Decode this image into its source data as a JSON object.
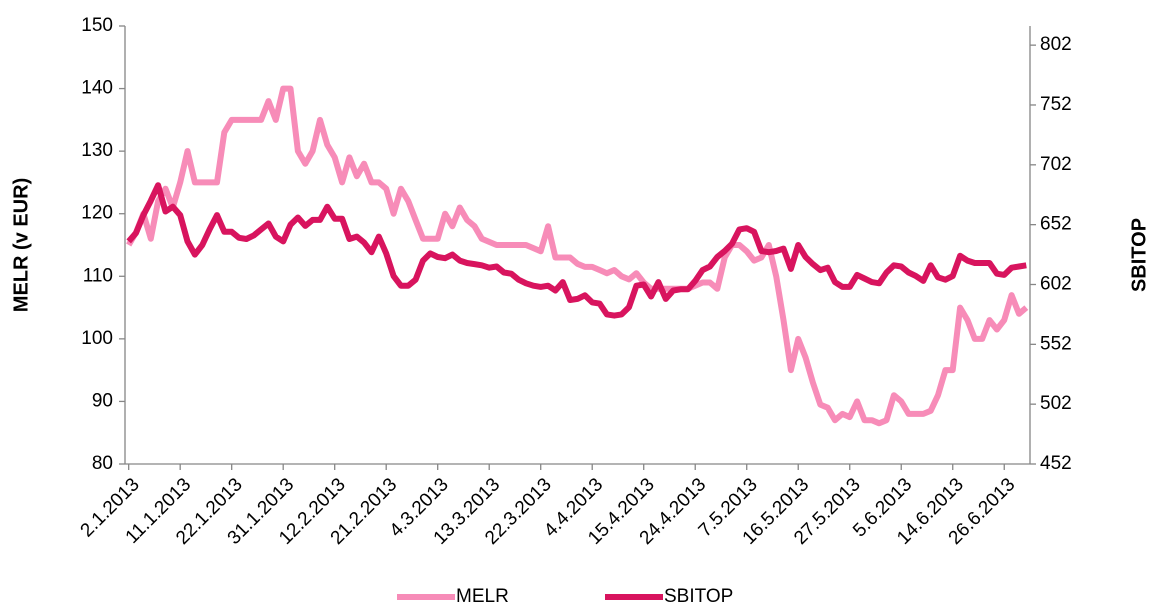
{
  "chart_data": {
    "type": "line",
    "y_label": "MELR (v EUR)",
    "y2_label": "SBITOP",
    "categories": [
      "2.1.2013",
      null,
      null,
      null,
      null,
      null,
      null,
      "11.1.2013",
      null,
      null,
      null,
      null,
      null,
      null,
      "22.1.2013",
      null,
      null,
      null,
      null,
      null,
      null,
      "31.1.2013",
      null,
      null,
      null,
      null,
      null,
      null,
      "12.2.2013",
      null,
      null,
      null,
      null,
      null,
      null,
      "21.2.2013",
      null,
      null,
      null,
      null,
      null,
      null,
      "4.3.2013",
      null,
      null,
      null,
      null,
      null,
      null,
      "13.3.2013",
      null,
      null,
      null,
      null,
      null,
      null,
      "22.3.2013",
      null,
      null,
      null,
      null,
      null,
      null,
      "4.4.2013",
      null,
      null,
      null,
      null,
      null,
      null,
      "15.4.2013",
      null,
      null,
      null,
      null,
      null,
      null,
      "24.4.2013",
      null,
      null,
      null,
      null,
      null,
      null,
      "7.5.2013",
      null,
      null,
      null,
      null,
      null,
      null,
      "16.5.2013",
      null,
      null,
      null,
      null,
      null,
      null,
      "27.5.2013",
      null,
      null,
      null,
      null,
      null,
      null,
      "5.6.2013",
      null,
      null,
      null,
      null,
      null,
      null,
      "14.6.2013",
      null,
      null,
      null,
      null,
      null,
      null,
      "26.6.2013",
      null,
      null,
      null
    ],
    "ylim": [
      80,
      150
    ],
    "yticks": [
      80,
      90,
      100,
      110,
      120,
      130,
      140,
      150
    ],
    "y2lim": [
      452,
      818
    ],
    "y2ticks": [
      452,
      502,
      552,
      602,
      652,
      702,
      752,
      802
    ],
    "legend": "bottom",
    "series": [
      {
        "name": "MELR",
        "color": "#f78cb8",
        "values": [
          115,
          117,
          120,
          116,
          122,
          124,
          121,
          125,
          130,
          125,
          125,
          125,
          125,
          133,
          135,
          135,
          135,
          135,
          135,
          138,
          135,
          140,
          140,
          130,
          128,
          130,
          135,
          131,
          129,
          125,
          129,
          126,
          128,
          125,
          125,
          124,
          120,
          124,
          122,
          119,
          116,
          116,
          116,
          120,
          118,
          121,
          119,
          118,
          116,
          115.5,
          115,
          115,
          115,
          115,
          115,
          114.5,
          114,
          118,
          113,
          113,
          113,
          112,
          111.5,
          111.5,
          111,
          110.5,
          111,
          110,
          109.5,
          110.5,
          109,
          108,
          108,
          108,
          108,
          108,
          108,
          108.5,
          109,
          109,
          108,
          113,
          115,
          115,
          114,
          112.5,
          113,
          115,
          110,
          103,
          95,
          100,
          97,
          93,
          89.5,
          89,
          87,
          88,
          87.5,
          90,
          87,
          87,
          86.5,
          87,
          91,
          90,
          88,
          88,
          88,
          88.5,
          91,
          95,
          95,
          105,
          103,
          100,
          100,
          103,
          101.5,
          103,
          107,
          104,
          105
        ]
      },
      {
        "name": "SBITOP",
        "color": "#d8145e",
        "axis": "y2",
        "values": [
          638,
          645,
          660,
          672,
          685,
          663,
          667,
          660,
          638,
          627,
          635,
          648,
          660,
          646,
          646,
          641,
          640,
          643,
          648,
          653,
          642,
          638,
          652,
          658,
          651,
          656,
          656,
          667,
          657,
          657,
          640,
          642,
          637,
          629,
          642,
          628,
          609,
          601,
          601,
          606,
          622,
          628,
          625,
          624,
          627,
          622,
          620,
          619,
          618,
          616,
          617,
          612,
          611,
          606,
          603,
          601,
          600,
          601,
          597,
          604,
          589,
          590,
          593,
          587,
          586,
          577,
          576,
          577,
          583,
          601,
          602,
          592,
          604,
          590,
          597,
          598,
          598,
          605,
          614,
          617,
          625,
          630,
          636,
          648,
          649,
          646,
          630,
          629,
          630,
          632,
          615,
          635,
          625,
          619,
          614,
          616,
          604,
          600,
          600,
          610,
          607,
          604,
          603,
          612,
          618,
          617,
          612,
          609,
          605,
          618,
          608,
          606,
          609,
          626,
          622,
          620,
          620,
          620,
          611,
          610,
          616,
          617,
          618
        ]
      }
    ]
  }
}
